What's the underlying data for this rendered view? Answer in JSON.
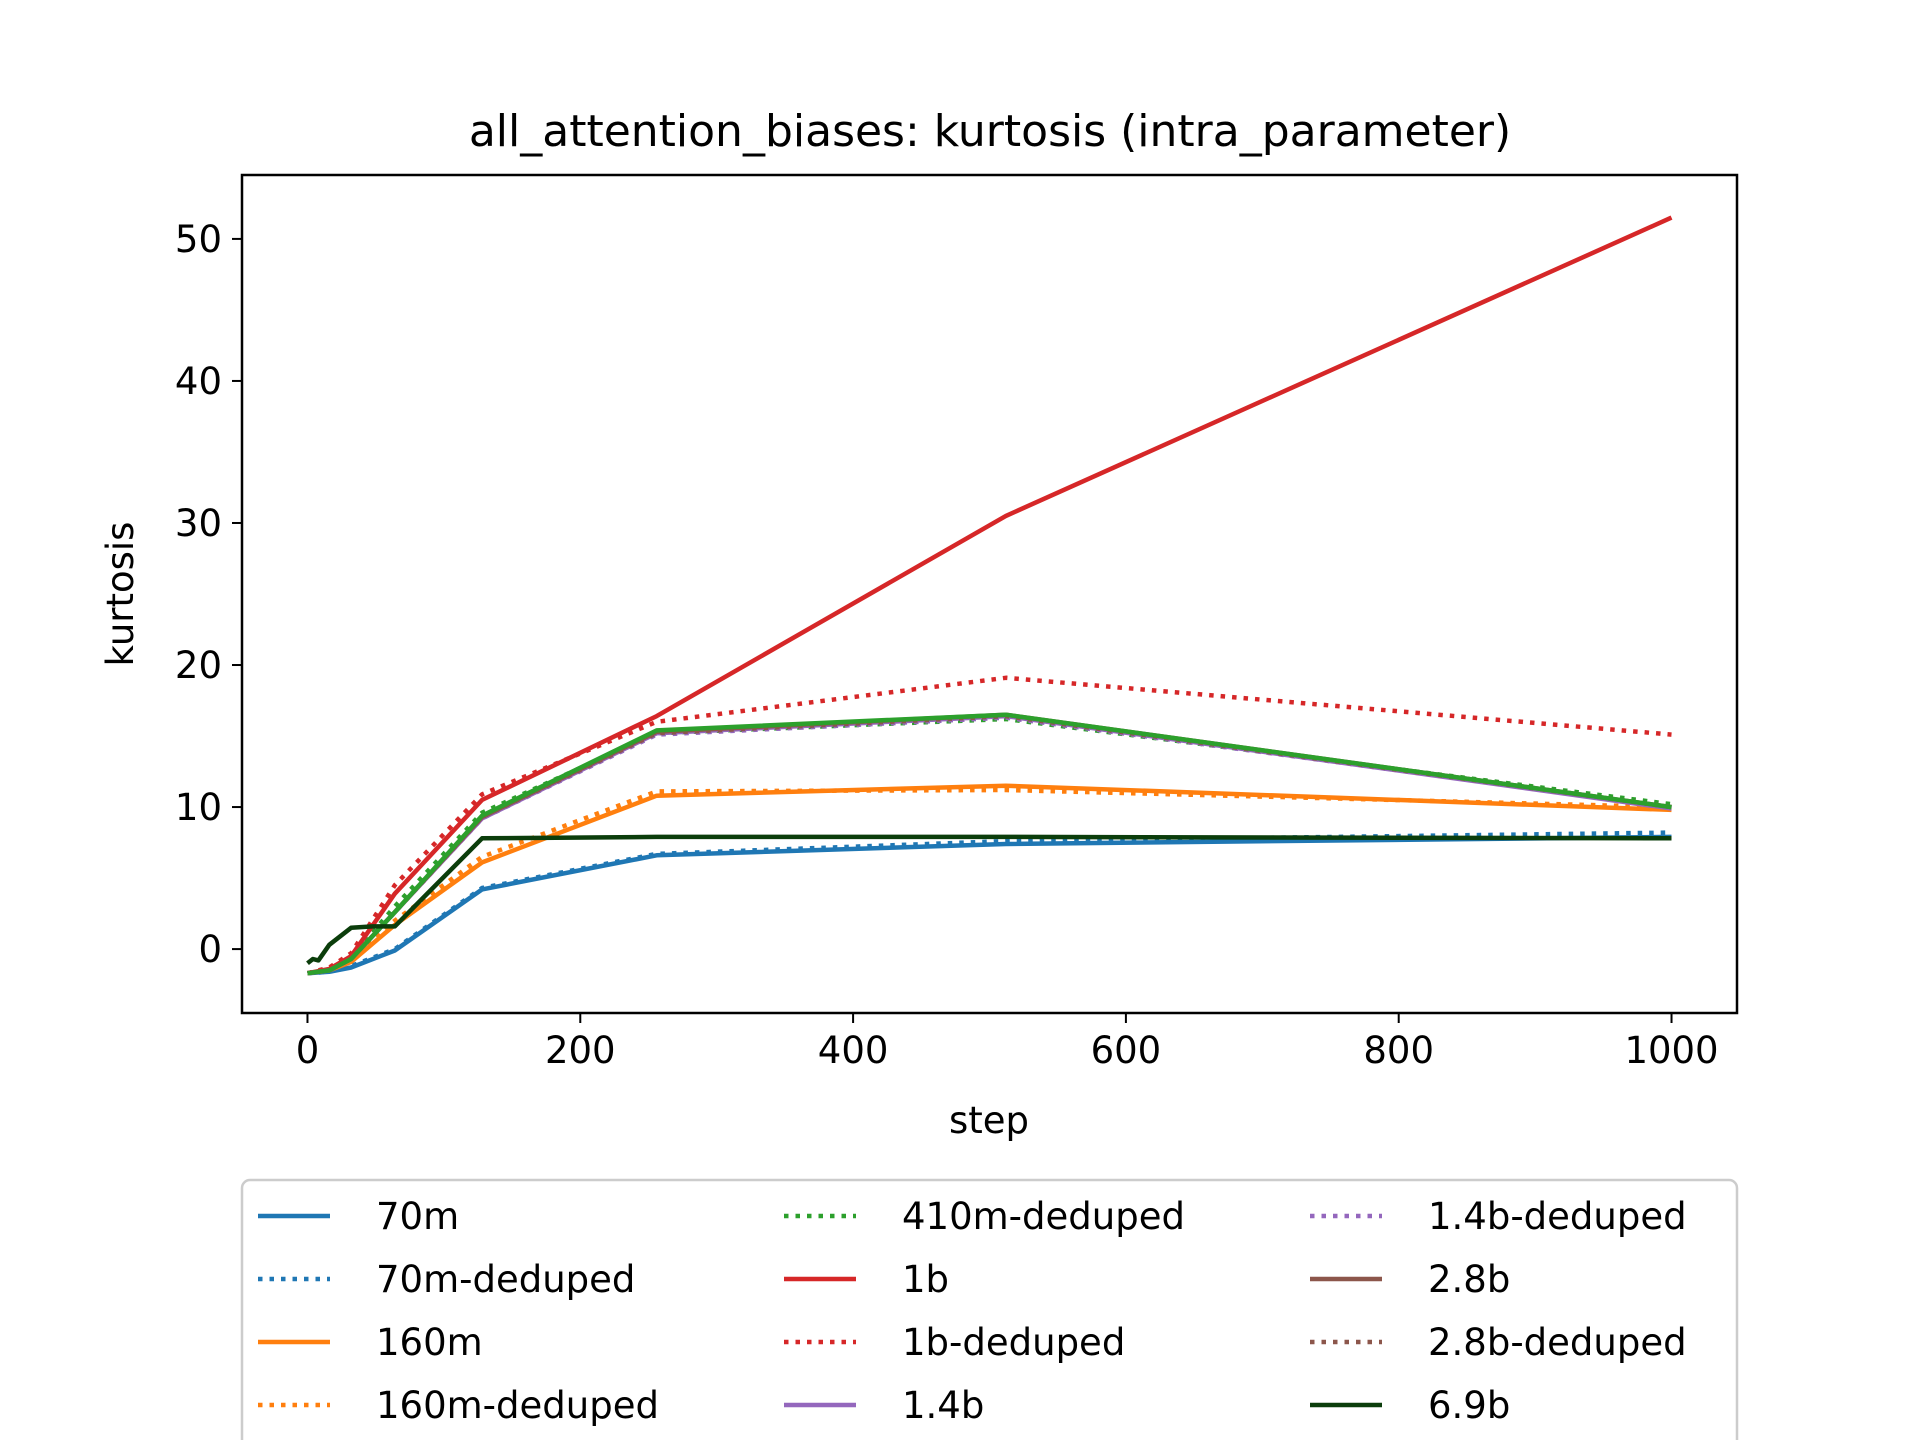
{
  "chart_data": {
    "type": "line",
    "title": "all_attention_biases: kurtosis (intra_parameter)",
    "xlabel": "step",
    "ylabel": "kurtosis",
    "xlim": [
      -48,
      1048
    ],
    "ylim": [
      -4.5,
      54.5
    ],
    "xticks": [
      0,
      200,
      400,
      600,
      800,
      1000
    ],
    "yticks": [
      0,
      10,
      20,
      30,
      40,
      50
    ],
    "grid": false,
    "legend_position": "bottom",
    "legend_columns": 3,
    "series": [
      {
        "name": "70m",
        "color": "#1f77b4",
        "style": "solid",
        "x": [
          0,
          16,
          32,
          64,
          128,
          256,
          512,
          1000
        ],
        "y": [
          -1.7,
          -1.6,
          -1.3,
          -0.1,
          4.2,
          6.6,
          7.4,
          7.9
        ]
      },
      {
        "name": "70m-deduped",
        "color": "#1f77b4",
        "style": "dotted",
        "x": [
          0,
          16,
          32,
          64,
          128,
          256,
          512,
          1000
        ],
        "y": [
          -1.7,
          -1.6,
          -1.2,
          0.0,
          4.3,
          6.7,
          7.6,
          8.2
        ]
      },
      {
        "name": "160m",
        "color": "#ff7f0e",
        "style": "solid",
        "x": [
          0,
          16,
          32,
          64,
          128,
          256,
          512,
          1000
        ],
        "y": [
          -1.7,
          -1.5,
          -0.9,
          1.7,
          6.1,
          10.8,
          11.5,
          9.8
        ]
      },
      {
        "name": "160m-deduped",
        "color": "#ff7f0e",
        "style": "dotted",
        "x": [
          0,
          16,
          32,
          64,
          128,
          256,
          512,
          1000
        ],
        "y": [
          -1.7,
          -1.5,
          -0.8,
          2.0,
          6.5,
          11.1,
          11.2,
          10.0
        ]
      },
      {
        "name": "410m-deduped",
        "color": "#2ca02c",
        "style": "dotted",
        "x": [
          0,
          16,
          32,
          64,
          128,
          256,
          512,
          1000
        ],
        "y": [
          -1.7,
          -1.5,
          -0.6,
          3.0,
          9.6,
          15.2,
          16.2,
          10.2
        ]
      },
      {
        "name": "1b",
        "color": "#d62728",
        "style": "solid",
        "x": [
          0,
          16,
          32,
          64,
          128,
          256,
          512,
          1000
        ],
        "y": [
          -1.7,
          -1.4,
          -0.5,
          3.9,
          10.5,
          16.4,
          30.5,
          51.5
        ]
      },
      {
        "name": "1b-deduped",
        "color": "#d62728",
        "style": "dotted",
        "x": [
          0,
          16,
          32,
          64,
          128,
          256,
          512,
          1000
        ],
        "y": [
          -1.7,
          -1.3,
          -0.3,
          4.5,
          10.9,
          16.0,
          19.1,
          15.1
        ]
      },
      {
        "name": "1.4b",
        "color": "#9467bd",
        "style": "solid",
        "x": [
          0,
          16,
          32,
          64,
          128,
          256,
          512,
          1000
        ],
        "y": [
          -1.7,
          -1.5,
          -0.7,
          2.6,
          9.2,
          15.2,
          16.4,
          9.9
        ]
      },
      {
        "name": "1.4b-deduped",
        "color": "#9467bd",
        "style": "dotted",
        "x": [
          0,
          16,
          32,
          64,
          128,
          256,
          512,
          1000
        ],
        "y": [
          -1.7,
          -1.5,
          -0.7,
          2.6,
          9.2,
          15.1,
          16.3,
          10.0
        ]
      },
      {
        "name": "2.8b",
        "color": "#8c564b",
        "style": "solid",
        "x": [
          0,
          16,
          32,
          64,
          128,
          256,
          512,
          1000
        ],
        "y": [
          -1.7,
          -1.5,
          -0.7,
          2.6,
          9.3,
          15.3,
          16.5,
          10.0
        ]
      },
      {
        "name": "2.8b-deduped",
        "color": "#8c564b",
        "style": "dotted",
        "x": [
          0,
          16,
          32,
          64,
          128,
          256,
          512,
          1000
        ],
        "y": [
          -1.7,
          -1.5,
          -0.7,
          2.6,
          9.3,
          15.2,
          16.4,
          10.0
        ]
      },
      {
        "name": "410m",
        "color": "#2ca02c",
        "style": "solid",
        "legend": false,
        "x": [
          0,
          16,
          32,
          64,
          128,
          256,
          512,
          1000
        ],
        "y": [
          -1.7,
          -1.5,
          -0.7,
          2.6,
          9.4,
          15.4,
          16.5,
          10.0
        ]
      },
      {
        "name": "6.9b",
        "color": "#0b3d0b",
        "style": "solid",
        "x": [
          0,
          4,
          8,
          16,
          32,
          48,
          64,
          128,
          256,
          512,
          1000
        ],
        "y": [
          -1.0,
          -0.7,
          -0.8,
          0.3,
          1.5,
          1.6,
          1.6,
          7.8,
          7.9,
          7.9,
          7.8
        ]
      }
    ]
  }
}
